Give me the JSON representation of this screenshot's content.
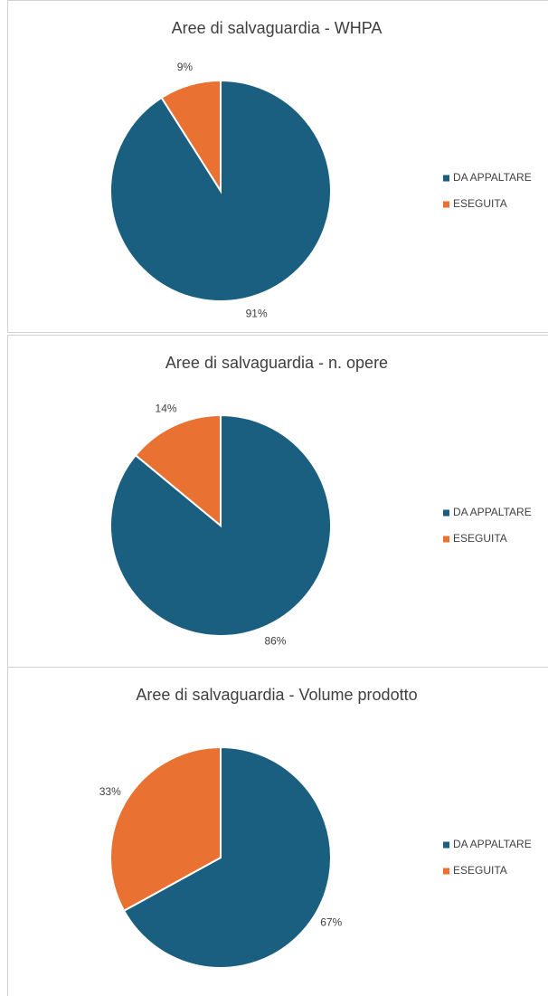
{
  "chart_data": [
    {
      "type": "pie",
      "title": "Aree di salvaguardia - WHPA",
      "categories": [
        "DA APPALTARE",
        "ESEGUITA"
      ],
      "values": [
        91,
        9
      ],
      "value_labels": [
        "91%",
        "9%"
      ],
      "colors": [
        "#1a5e80",
        "#e97132"
      ],
      "legend": "right"
    },
    {
      "type": "pie",
      "title": "Aree di salvaguardia - n. opere",
      "categories": [
        "DA APPALTARE",
        "ESEGUITA"
      ],
      "values": [
        86,
        14
      ],
      "value_labels": [
        "86%",
        "14%"
      ],
      "colors": [
        "#1a5e80",
        "#e97132"
      ],
      "legend": "right"
    },
    {
      "type": "pie",
      "title": "Aree di salvaguardia - Volume prodotto",
      "categories": [
        "DA APPALTARE",
        "ESEGUITA"
      ],
      "values": [
        67,
        33
      ],
      "value_labels": [
        "67%",
        "33%"
      ],
      "colors": [
        "#1a5e80",
        "#e97132"
      ],
      "legend": "right"
    }
  ]
}
